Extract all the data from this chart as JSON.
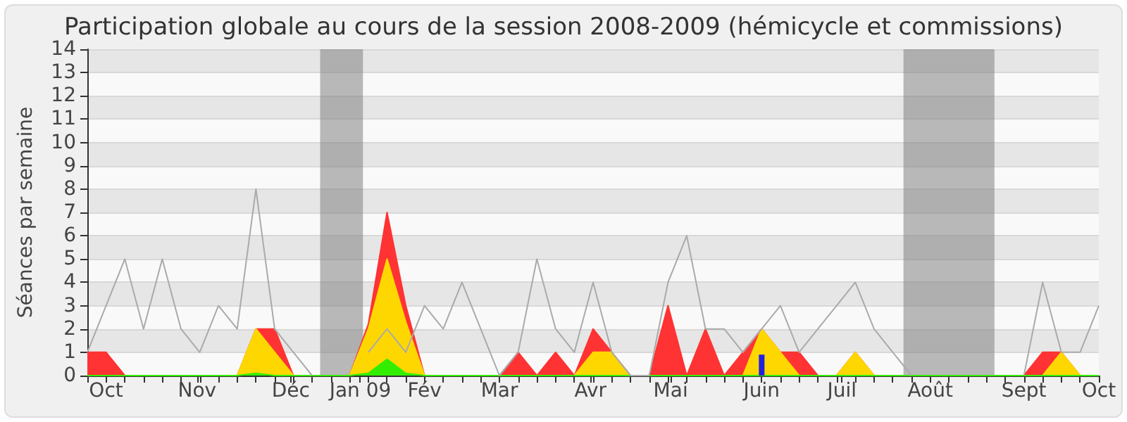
{
  "chart_data": {
    "type": "area",
    "stacked": true,
    "title": "Participation globale au cours de la session 2008-2009 (hémicycle et commissions)",
    "ylabel": "Séances par semaine",
    "x": [
      "2008-09-29",
      "2008-10-06",
      "2008-10-13",
      "2008-10-20",
      "2008-10-27",
      "2008-11-03",
      "2008-11-10",
      "2008-11-17",
      "2008-11-24",
      "2008-12-01",
      "2008-12-08",
      "2008-12-15",
      "2008-12-22",
      "2008-12-29",
      "2009-01-05",
      "2009-01-12",
      "2009-01-19",
      "2009-01-26",
      "2009-02-02",
      "2009-02-09",
      "2009-02-16",
      "2009-02-23",
      "2009-03-02",
      "2009-03-09",
      "2009-03-16",
      "2009-03-23",
      "2009-03-30",
      "2009-04-06",
      "2009-04-13",
      "2009-04-20",
      "2009-04-27",
      "2009-05-04",
      "2009-05-11",
      "2009-05-18",
      "2009-05-25",
      "2009-06-01",
      "2009-06-08",
      "2009-06-15",
      "2009-06-22",
      "2009-06-29",
      "2009-07-06",
      "2009-07-13",
      "2009-07-20",
      "2009-07-27",
      "2009-08-03",
      "2009-08-10",
      "2009-08-17",
      "2009-08-24",
      "2009-08-31",
      "2009-09-07",
      "2009-09-14",
      "2009-09-21",
      "2009-09-28",
      "2009-10-05",
      "2009-10-12"
    ],
    "xlim": [
      "2008-09-29",
      "2009-10-12"
    ],
    "ylim": [
      0,
      14
    ],
    "yticks": [
      0,
      1,
      2,
      3,
      4,
      5,
      6,
      7,
      8,
      9,
      10,
      11,
      12,
      13,
      14
    ],
    "xticks": [
      {
        "value": "2008-10-06",
        "label": "Oct"
      },
      {
        "value": "2008-11-09",
        "label": "Nov"
      },
      {
        "value": "2008-12-14",
        "label": "Déc"
      },
      {
        "value": "2009-01-09",
        "label": "Jan 09"
      },
      {
        "value": "2009-02-02",
        "label": "Fév"
      },
      {
        "value": "2009-03-02",
        "label": "Mar"
      },
      {
        "value": "2009-04-05",
        "label": "Avr"
      },
      {
        "value": "2009-05-05",
        "label": "Mai"
      },
      {
        "value": "2009-06-08",
        "label": "Juin"
      },
      {
        "value": "2009-07-08",
        "label": "Juil"
      },
      {
        "value": "2009-08-10",
        "label": "Août"
      },
      {
        "value": "2009-09-14",
        "label": "Sept"
      },
      {
        "value": "2009-10-12",
        "label": "Oct"
      },
      {
        "value": "2008-09-29",
        "label": null
      },
      {
        "value": "2008-10-13",
        "label": null
      },
      {
        "value": "2008-10-20",
        "label": null
      },
      {
        "value": "2008-10-27",
        "label": null
      },
      {
        "value": "2008-11-03",
        "label": null
      },
      {
        "value": "2008-11-10",
        "label": null
      },
      {
        "value": "2008-11-17",
        "label": null
      },
      {
        "value": "2008-11-24",
        "label": null
      },
      {
        "value": "2008-12-01",
        "label": null
      },
      {
        "value": "2008-12-08",
        "label": null
      },
      {
        "value": "2008-12-15",
        "label": null
      },
      {
        "value": "2008-12-22",
        "label": null
      },
      {
        "value": "2008-12-29",
        "label": null
      },
      {
        "value": "2009-01-05",
        "label": null
      },
      {
        "value": "2009-01-12",
        "label": null
      },
      {
        "value": "2009-01-19",
        "label": null
      },
      {
        "value": "2009-01-26",
        "label": null
      },
      {
        "value": "2009-02-09",
        "label": null
      },
      {
        "value": "2009-02-16",
        "label": null
      },
      {
        "value": "2009-02-23",
        "label": null
      },
      {
        "value": "2009-03-09",
        "label": null
      },
      {
        "value": "2009-03-16",
        "label": null
      },
      {
        "value": "2009-03-23",
        "label": null
      },
      {
        "value": "2009-03-30",
        "label": null
      },
      {
        "value": "2009-04-06",
        "label": null
      },
      {
        "value": "2009-04-13",
        "label": null
      },
      {
        "value": "2009-04-20",
        "label": null
      },
      {
        "value": "2009-04-27",
        "label": null
      },
      {
        "value": "2009-05-04",
        "label": null
      },
      {
        "value": "2009-05-11",
        "label": null
      },
      {
        "value": "2009-05-18",
        "label": null
      },
      {
        "value": "2009-05-25",
        "label": null
      },
      {
        "value": "2009-06-01",
        "label": null
      },
      {
        "value": "2009-06-15",
        "label": null
      },
      {
        "value": "2009-06-22",
        "label": null
      },
      {
        "value": "2009-06-29",
        "label": null
      },
      {
        "value": "2009-07-06",
        "label": null
      },
      {
        "value": "2009-07-13",
        "label": null
      },
      {
        "value": "2009-07-20",
        "label": null
      },
      {
        "value": "2009-07-27",
        "label": null
      },
      {
        "value": "2009-08-03",
        "label": null
      },
      {
        "value": "2009-08-17",
        "label": null
      },
      {
        "value": "2009-08-24",
        "label": null
      },
      {
        "value": "2009-08-31",
        "label": null
      },
      {
        "value": "2009-09-07",
        "label": null
      },
      {
        "value": "2009-09-21",
        "label": null
      },
      {
        "value": "2009-09-28",
        "label": null
      },
      {
        "value": "2009-10-05",
        "label": null
      }
    ],
    "grid": "y",
    "bands": [
      {
        "axis": "x",
        "from": "2008-12-25",
        "to": "2009-01-10",
        "color": "#777777"
      },
      {
        "axis": "x",
        "from": "2009-07-31",
        "to": "2009-09-03",
        "color": "#777777"
      }
    ],
    "series": [
      {
        "type": "line",
        "color": "#aaaaaa",
        "values": [
          1,
          3,
          5,
          2,
          5,
          2,
          1,
          3,
          2,
          8,
          2,
          1,
          0,
          null,
          null,
          1,
          2,
          1,
          3,
          2,
          4,
          2,
          0,
          1,
          5,
          2,
          1,
          4,
          1,
          0,
          0,
          4,
          6,
          2,
          2,
          1,
          2,
          3,
          1,
          2,
          3,
          4,
          2,
          1,
          0,
          null,
          null,
          null,
          null,
          null,
          0,
          4,
          1,
          1,
          3
        ]
      },
      {
        "color": "#33ee00",
        "values": [
          0,
          0,
          0,
          0,
          0,
          0,
          0,
          0,
          0,
          0.1,
          0,
          0,
          0,
          0,
          0,
          0.1,
          0.7,
          0.1,
          0,
          0,
          0,
          0,
          0,
          0,
          0,
          0,
          0,
          0,
          0,
          0,
          0,
          0,
          0,
          0,
          0,
          0,
          0,
          0,
          0,
          0,
          0,
          0,
          0,
          0,
          0,
          0,
          0,
          0,
          0,
          0,
          0,
          0,
          0,
          0,
          0
        ]
      },
      {
        "color": "#ffd700",
        "values": [
          0,
          0,
          0,
          0,
          0,
          0,
          0,
          0,
          0,
          1.9,
          1,
          0,
          0,
          0,
          0,
          1.9,
          4.3,
          2.2,
          0,
          0,
          0,
          0,
          0,
          0,
          0,
          0,
          0,
          1,
          1,
          0,
          0,
          0,
          0,
          0,
          0,
          0,
          2,
          1,
          0,
          0,
          0,
          1,
          0,
          0,
          0,
          0,
          0,
          0,
          0,
          0,
          0,
          0,
          1,
          0,
          0
        ]
      },
      {
        "color": "#ff3333",
        "values": [
          1,
          1,
          0,
          0,
          0,
          0,
          0,
          0,
          0,
          0,
          1,
          0,
          0,
          0,
          0,
          0.2,
          2,
          0.7,
          0,
          0,
          0,
          0,
          0,
          1,
          0,
          1,
          0,
          1,
          0,
          0,
          0,
          3,
          0,
          2,
          0,
          1,
          0,
          0,
          1,
          0,
          0,
          0,
          0,
          0,
          0,
          0,
          0,
          0,
          0,
          0,
          0,
          1,
          0,
          0,
          0
        ]
      },
      {
        "type": "bar",
        "color": "#2222dd",
        "x": [
          "2009-06-08"
        ],
        "values": [
          0.9
        ]
      }
    ]
  }
}
